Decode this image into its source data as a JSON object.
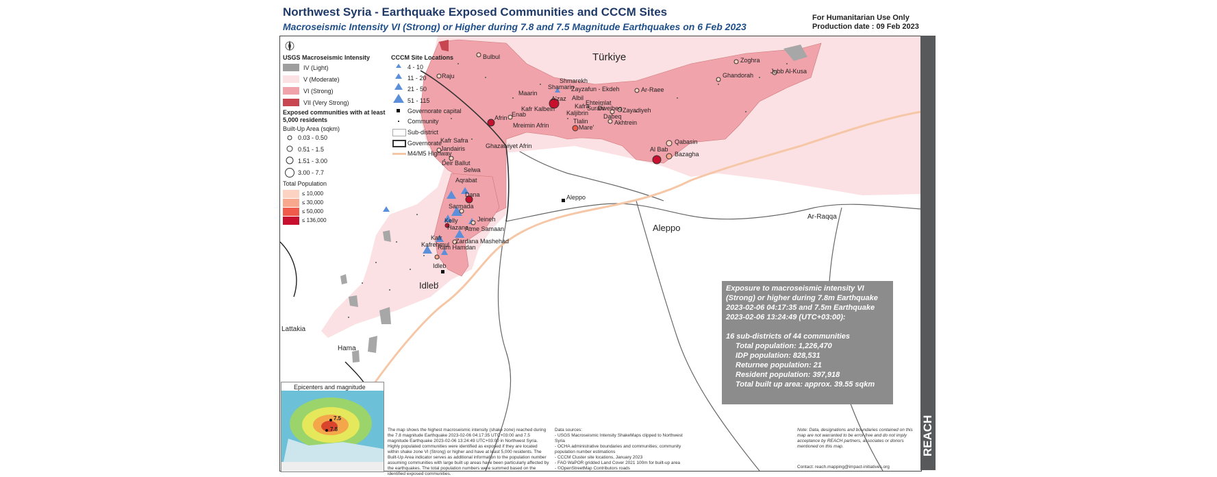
{
  "header": {
    "title": "Northwest Syria - Earthquake Exposed Communities and CCCM Sites",
    "subtitle": "Macroseismic Intensity VI (Strong) or Higher during 7.8 and 7.5 Magnitude Earthquakes on 6 Feb 2023",
    "use_only": "For Humanitarian Use Only",
    "production_date": "Production date : 09 Feb 2023"
  },
  "legend": {
    "usgs_title": "USGS Macroseismic Intensity",
    "intensity": [
      {
        "label": "IV (Light)",
        "color": "#9e9e9e"
      },
      {
        "label": "V (Moderate)",
        "color": "#fbe1e3"
      },
      {
        "label": "VI (Strong)",
        "color": "#f1a3ab"
      },
      {
        "label": "VII (Very Strong)",
        "color": "#c8464f"
      }
    ],
    "exposed_title": "Exposed communities with at least 5,000 residents",
    "builtup_title": "Built-Up Area (sqkm)",
    "builtup": [
      "0.03 - 0.50",
      "0.51 - 1.5",
      "1.51 - 3.00",
      "3.00 - 7.7"
    ],
    "population_title": "Total Population",
    "population": [
      {
        "label": "≤ 10,000",
        "color": "#fcd3c2"
      },
      {
        "label": "≤ 30,000",
        "color": "#f7a88d"
      },
      {
        "label": "≤ 50,000",
        "color": "#f05a4a"
      },
      {
        "label": "≤ 136,000",
        "color": "#c8102e"
      }
    ],
    "cccm_title": "CCCM Site Locations",
    "cccm": [
      "4 - 10",
      "11 - 20",
      "21 - 50",
      "51 - 115"
    ],
    "symbols": [
      "Governorate capital",
      "Community",
      "Sub-district",
      "Governorate",
      "M4/M5 Highway"
    ]
  },
  "map_labels": {
    "countries": [
      "Türkiye",
      "Aleppo",
      "Idleb",
      "Ar-Raqqa",
      "Lattakia",
      "Hama"
    ],
    "capitals": [
      "Aleppo",
      "Idleb"
    ],
    "communities": [
      "Bulbul",
      "Raju",
      "Shmarekh",
      "Shamarin",
      "Zayzafun - Ekdeh",
      "Maarin",
      "A'zaz",
      "Albil",
      "Kafr Kalbein",
      "Ehteimlat",
      "Kafra",
      "Surani",
      "Dweibeq",
      "Zayadiyeh",
      "Kaljibrin",
      "Enab",
      "Afrin",
      "Tlalin",
      "Dabeq",
      "Mreimin Afrin",
      "Mare'",
      "Akhtrein",
      "Ar-Raee",
      "Zoghra",
      "Ghandorah",
      "Jubb Al-Kusa",
      "Kafr Safra",
      "Jandairis",
      "Ghazawiyet Afrin",
      "Deir Ballut",
      "Selwa",
      "Aqrabat",
      "Dana",
      "Sarmada",
      "Jeineh",
      "Kelly",
      "Hazano",
      "Atme Samaan",
      "Kafr",
      "Kafrehmul",
      "Zardana Mashehad",
      "Ram Hamdan",
      "Idleb",
      "Al Bab",
      "Qabasin",
      "Bazagha"
    ]
  },
  "stats": {
    "heading": "Exposure to macroseismic intensity VI (Strong) or higher during 7.8m Earthquake 2023-02-06 04:17:35 and 7.5m Earthquake 2023-02-06 13:24:49 (UTC+03:00):",
    "line1": "16 sub-districts of 44 communities",
    "total_population": "Total population: 1,226,470",
    "idp_population": "IDP population: 828,531",
    "returnee_population": "Returnee population: 21",
    "resident_population": "Resident population: 397,918",
    "builtup_area": "Total built up area: approx. 39.55 sqkm"
  },
  "inset": {
    "title": "Epicenters and magnitude",
    "mag1": "7.5",
    "mag2": "7.8"
  },
  "notes": {
    "description": "The map shows the highest macroseismic intensity (shake zone) reached during the 7.8 magnitude Earthquake 2023-02-06 04:17:35 UTC+03:00 and 7.5 magnitude Earthquake 2023-02-06 13:24:49 UTC+03:00 in Northwest Syria. Highly populated communities were identified as exposed if they are located within shake zone VI (Strong) or higher and have at least 5,000 residents. The Built-Up Area indicator serves as additional information to the population number assuming communities with large built up areas have been particularly affected by the earthquakes. The total population numbers were summed based on the identified exposed communities.",
    "sources_title": "Data sources:",
    "sources": [
      "- USGS Macroseismic Intensity ShakeMaps clipped to Northwest Syria",
      "- OCHA administrative boundaries and communities; community population number estimations",
      "- CCCM Cluster site locations, January 2023",
      "- FAO WaPOR gridded Land Cover 2021 100m for built-up area",
      "- ©OpenStreetMap Contributors roads"
    ],
    "disclaimer": "Note: Data, designations and boundaries contained on this map are not warranted to be error-free and do not imply acceptance by REACH partners, associates or donors mentioned on this map.",
    "contact": "Contact: reach.mapping@impact-initiatives.org"
  },
  "branding": {
    "logo": "REACH"
  }
}
